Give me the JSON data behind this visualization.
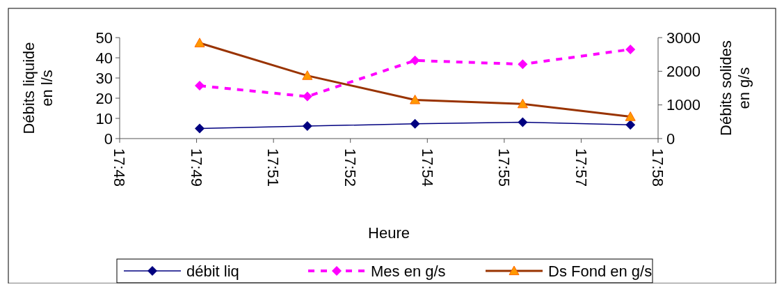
{
  "chart_data": {
    "type": "line",
    "xlabel": "Heure",
    "ylabel": "Débits liquide\nen l/s",
    "y2label": "Débits solides\nen g/s",
    "x": [
      17.826,
      17.861,
      17.896,
      17.931,
      17.966
    ],
    "xlim": [
      17.8,
      17.975
    ],
    "xticks": [
      {
        "value": 17.8,
        "label": "17:48"
      },
      {
        "value": 17.825,
        "label": "17:49"
      },
      {
        "value": 17.85,
        "label": "17:51"
      },
      {
        "value": 17.875,
        "label": "17:52"
      },
      {
        "value": 17.9,
        "label": "17:54"
      },
      {
        "value": 17.925,
        "label": "17:55"
      },
      {
        "value": 17.95,
        "label": "17:57"
      },
      {
        "value": 17.975,
        "label": "17:58"
      }
    ],
    "ylim": [
      0,
      50
    ],
    "yticks": [
      0,
      10,
      20,
      30,
      40,
      50
    ],
    "y2lim": [
      0,
      3000
    ],
    "y2ticks": [
      0,
      1000,
      2000,
      3000
    ],
    "grid": false,
    "legend": "bottom",
    "series": [
      {
        "name": "débit liq",
        "color": "#000080",
        "values": [
          5.0,
          6.2,
          7.3,
          8.1,
          6.8
        ],
        "marker": "diamond",
        "line_style": "solid"
      },
      {
        "name": "Mes en g/s",
        "color": "#ff00ff",
        "values": [
          1570,
          1250,
          2320,
          2210,
          2650
        ],
        "axis": "y2",
        "marker": "diamond",
        "line_style": "dashed"
      },
      {
        "name": "Ds Fond en g/s",
        "color": "#993300",
        "values": [
          2840,
          1870,
          1150,
          1030,
          650
        ],
        "axis": "y2",
        "marker": "triangle",
        "line_style": "solid"
      }
    ]
  }
}
